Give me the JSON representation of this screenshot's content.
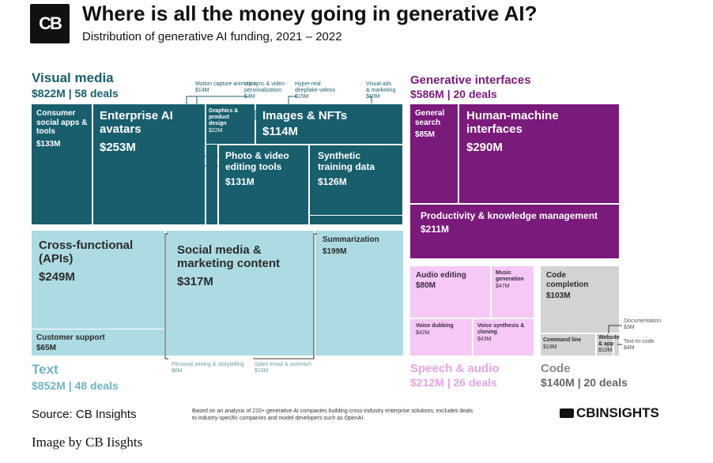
{
  "header": {
    "logo_text": "CB",
    "title": "Where is all the money going in generative AI?",
    "subtitle": "Distribution of generative AI funding, 2021 – 2022"
  },
  "colors": {
    "visual_media": "#185e6d",
    "text": "#acdbe3",
    "generative_interfaces": "#7a1a7a",
    "speech_audio": "#f5c8f5",
    "code": "#d3d3d3"
  },
  "groups": {
    "visual_media": {
      "name": "Visual media",
      "stats": "$822M | 58 deals"
    },
    "text": {
      "name": "Text",
      "stats": "$852M | 48 deals"
    },
    "generative_interfaces": {
      "name": "Generative interfaces",
      "stats": "$586M | 20 deals"
    },
    "speech_audio": {
      "name": "Speech & audio",
      "stats": "$212M | 26 deals"
    },
    "code": {
      "name": "Code",
      "stats": "$140M | 20 deals"
    }
  },
  "chart_data": {
    "type": "treemap",
    "title": "Where is all the money going in generative AI?",
    "subtitle": "Distribution of generative AI funding, 2021 – 2022",
    "units": "$M",
    "groups": [
      {
        "name": "Visual media",
        "total": 822,
        "deals": 58,
        "segments": [
          {
            "name": "Consumer social apps & tools",
            "value": 133
          },
          {
            "name": "Enterprise AI avatars",
            "value": 253
          },
          {
            "name": "Images & NFTs",
            "value": 114
          },
          {
            "name": "Photo & video editing tools",
            "value": 131
          },
          {
            "name": "Synthetic training data",
            "value": 126
          },
          {
            "name": "Graphics & product design",
            "value": 22
          },
          {
            "name": "Motion capture animation",
            "value": 14
          },
          {
            "name": "Lip sync & video personalization",
            "value": 4
          },
          {
            "name": "Hyper-real deepfake videos",
            "value": 15
          },
          {
            "name": "Visual ads & marketing",
            "value": 10
          }
        ]
      },
      {
        "name": "Text",
        "total": 852,
        "deals": 48,
        "segments": [
          {
            "name": "Cross-functional (APIs)",
            "value": 249
          },
          {
            "name": "Customer support",
            "value": 65
          },
          {
            "name": "Social media & marketing content",
            "value": 317
          },
          {
            "name": "Summarization",
            "value": 199
          },
          {
            "name": "Personal writing & storytelling",
            "value": 6
          },
          {
            "name": "Sales email & outreach",
            "value": 15
          }
        ]
      },
      {
        "name": "Generative interfaces",
        "total": 586,
        "deals": 20,
        "segments": [
          {
            "name": "General search",
            "value": 85
          },
          {
            "name": "Human-machine interfaces",
            "value": 290
          },
          {
            "name": "Productivity & knowledge management",
            "value": 211
          }
        ]
      },
      {
        "name": "Speech & audio",
        "total": 212,
        "deals": 26,
        "segments": [
          {
            "name": "Audio editing",
            "value": 80
          },
          {
            "name": "Music generation",
            "value": 47
          },
          {
            "name": "Voice dubbing",
            "value": 42
          },
          {
            "name": "Voice synthesis & cloning",
            "value": 43
          }
        ]
      },
      {
        "name": "Code",
        "total": 140,
        "deals": 20,
        "segments": [
          {
            "name": "Code completion",
            "value": 103
          },
          {
            "name": "Command line",
            "value": 19
          },
          {
            "name": "Website & app",
            "value": 10
          },
          {
            "name": "Text-to-code",
            "value": 4
          },
          {
            "name": "Documentation",
            "value": 3
          }
        ]
      }
    ]
  },
  "labels": {
    "consumer": {
      "name": "Consumer social apps & tools",
      "value": "$133M"
    },
    "avatars": {
      "name": "Enterprise AI avatars",
      "value": "$253M"
    },
    "graphics": {
      "name": "Graphics & product design",
      "value": "$22M"
    },
    "images": {
      "name": "Images & NFTs",
      "value": "$114M"
    },
    "photo": {
      "name": "Photo & video editing tools",
      "value": "$131M"
    },
    "synthetic": {
      "name": "Synthetic training data",
      "value": "$126M"
    },
    "motion": {
      "name": "Motion capture animation",
      "value": "$14M"
    },
    "lipsync": {
      "name": "Lip sync & video personalization",
      "value": "$4M"
    },
    "deepfake": {
      "name": "Hyper-real deepfake videos",
      "value": "$15M"
    },
    "visualads": {
      "name": "Visual ads & marketing",
      "value": "$10M"
    },
    "crossfunc": {
      "name": "Cross-functional (APIs)",
      "value": "$249M"
    },
    "support": {
      "name": "Customer support",
      "value": "$65M"
    },
    "social": {
      "name": "Social media & marketing content",
      "value": "$317M"
    },
    "summ": {
      "name": "Summarization",
      "value": "$199M"
    },
    "personal": {
      "name": "Personal writing & storytelling",
      "value": "$6M"
    },
    "sales": {
      "name": "Sales email & outreach",
      "value": "$15M"
    },
    "search": {
      "name": "General search",
      "value": "$85M"
    },
    "hmi": {
      "name": "Human-machine interfaces",
      "value": "$290M"
    },
    "productivity": {
      "name": "Productivity & knowledge management",
      "value": "$211M"
    },
    "audio": {
      "name": "Audio editing",
      "value": "$80M"
    },
    "music": {
      "name": "Music generation",
      "value": "$47M"
    },
    "dubbing": {
      "name": "Voice dubbing",
      "value": "$42M"
    },
    "voice": {
      "name": "Voice synthesis & cloning",
      "value": "$43M"
    },
    "codecomp": {
      "name": "Code completion",
      "value": "$103M"
    },
    "cmdline": {
      "name": "Command line",
      "value": "$19M"
    },
    "website": {
      "name": "Website & app",
      "value": "$10M"
    },
    "t2c": {
      "name": "Text-to-code",
      "value": "$4M"
    },
    "docs": {
      "name": "Documentation",
      "value": "$3M"
    }
  },
  "footer": {
    "source": "Source: CB Insights",
    "footnote": "Based on an analysis of 210+ generative AI companies building cross-industry enterprise solutions; excludes deals to industry-specific companies and model developers such as OpenAI.",
    "brand": "CBINSIGHTS",
    "credit": "Image by CB Iisghts"
  }
}
